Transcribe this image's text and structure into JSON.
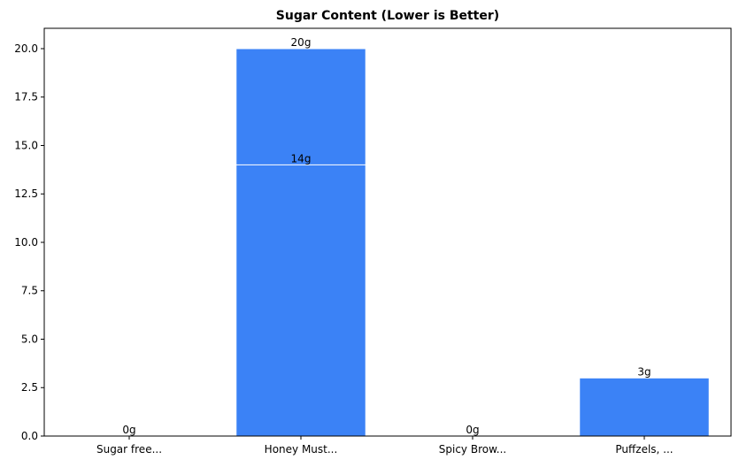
{
  "chart_data": {
    "type": "bar",
    "title": "Sugar Content (Lower is Better)",
    "xlabel": "",
    "ylabel": "",
    "categories": [
      "Sugar free...",
      "Honey Must...",
      "Spicy Brow...",
      "Puffzels, ..."
    ],
    "series": [
      {
        "name": "sugar_a",
        "values": [
          0,
          20,
          0,
          3
        ],
        "labels": [
          "0g",
          "20g",
          "0g",
          "3g"
        ]
      },
      {
        "name": "sugar_b",
        "values": [
          null,
          14,
          null,
          null
        ],
        "labels": [
          null,
          "14g",
          null,
          null
        ]
      }
    ],
    "ylim": [
      0,
      21.05
    ],
    "yticks": [
      "0.0",
      "2.5",
      "5.0",
      "7.5",
      "10.0",
      "12.5",
      "15.0",
      "17.5",
      "20.0"
    ],
    "grid": false,
    "legend": null,
    "colors": {
      "bar": "#3b82f6",
      "bar_edge": "#ffffff"
    }
  }
}
